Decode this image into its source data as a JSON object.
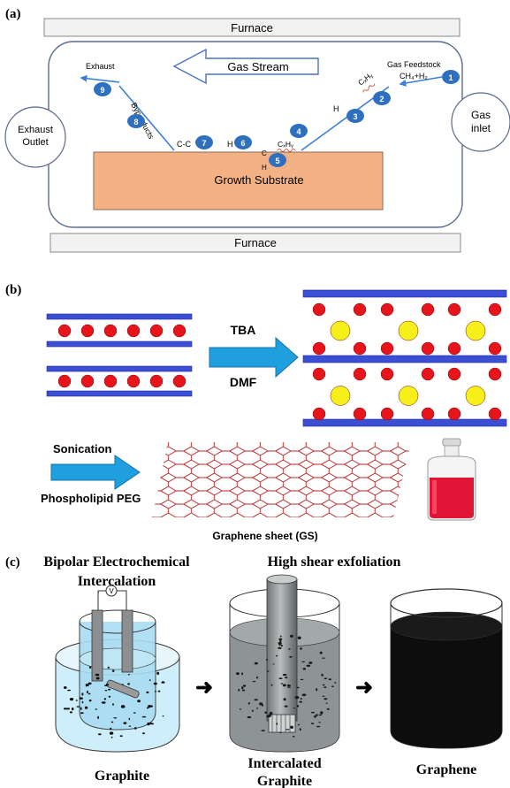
{
  "panel_a": {
    "tag": "(a)",
    "furnace_top": "Furnace",
    "furnace_bottom": "Furnace",
    "gas_stream": "Gas Stream",
    "exhaust_outlet_l1": "Exhaust",
    "exhaust_outlet_l2": "Outlet",
    "gas_inlet_l1": "Gas",
    "gas_inlet_l2": "inlet",
    "growth_substrate": "Growth Substrate",
    "exhaust": "Exhaust",
    "byproducts": "Byproducts",
    "feedstock_l1": "Gas Feedstock",
    "feedstock_l2": "CH₄+H₂",
    "chx_top": "CₓHᵧ",
    "chx_bottom": "CₓHᵧ",
    "h_diag": "H",
    "h_left": "H",
    "cc_left": "C-C",
    "c_sub": "C",
    "h_sub": "H",
    "steps": [
      "1",
      "2",
      "3",
      "4",
      "5",
      "6",
      "7",
      "8",
      "9"
    ]
  },
  "panel_b": {
    "tag": "(b)",
    "tba": "TBA",
    "dmf": "DMF",
    "sonication": "Sonication",
    "phospholipid": "Phospholipid PEG",
    "graphene_sheet": "Graphene sheet (GS)"
  },
  "panel_c": {
    "tag": "(c)",
    "title_left_l1": "Bipolar Electrochemical",
    "title_left_l2": "Intercalation",
    "title_mid": "High shear exfoliation",
    "voltmeter": "V",
    "caption_left": "Graphite",
    "caption_mid_l1": "Intercalated",
    "caption_mid_l2": "Graphite",
    "caption_right": "Graphene"
  },
  "colors": {
    "substrate": "#f4b183",
    "step_circle": "#2e6fbf",
    "plate": "#3b4fd6",
    "red_ball": "#e8141b",
    "yellow_ball": "#f7ef1a",
    "arrow_fill": "#1f9fe0",
    "hex_edge": "#b52a2a",
    "liquid_blue": "#bfe6f5",
    "liquid_gray": "#8e9495",
    "liquid_black": "#0d0d0d"
  }
}
